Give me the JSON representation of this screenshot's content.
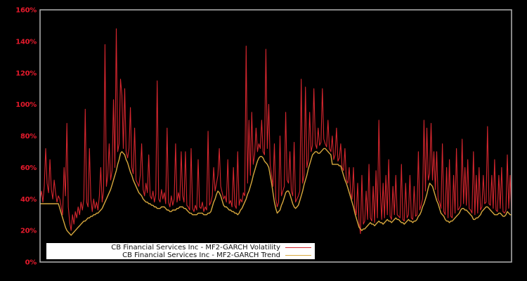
{
  "chart_data": {
    "type": "line",
    "title": "",
    "xlabel": "",
    "ylabel": "",
    "ylim": [
      0,
      160
    ],
    "grid": false,
    "background_color": "#000000",
    "plot_border_color": "#b4b4b4",
    "tick_label_color": "#e41a2c",
    "legend_position": "bottom-left",
    "y_ticks": [
      {
        "value": 0,
        "label": "0%"
      },
      {
        "value": 20,
        "label": "20%"
      },
      {
        "value": 40,
        "label": "40%"
      },
      {
        "value": 60,
        "label": "60%"
      },
      {
        "value": 80,
        "label": "80%"
      },
      {
        "value": 100,
        "label": "100%"
      },
      {
        "value": 120,
        "label": "120%"
      },
      {
        "value": 140,
        "label": "140%"
      },
      {
        "value": 160,
        "label": "160%"
      }
    ],
    "series": [
      {
        "id": "volatility",
        "name": "CB Financial Services Inc - MF2-GARCH Volatility",
        "color": "#d5262e",
        "values": [
          40,
          45,
          38,
          48,
          72,
          50,
          44,
          65,
          46,
          40,
          52,
          44,
          38,
          42,
          40,
          35,
          30,
          60,
          42,
          88,
          35,
          25,
          20,
          30,
          24,
          32,
          28,
          35,
          30,
          38,
          33,
          40,
          97,
          38,
          35,
          72,
          40,
          32,
          40,
          34,
          38,
          33,
          42,
          60,
          38,
          45,
          138,
          48,
          55,
          75,
          52,
          58,
          103,
          60,
          148,
          70,
          75,
          116,
          106,
          72,
          110,
          70,
          66,
          72,
          98,
          60,
          56,
          85,
          52,
          50,
          48,
          55,
          75,
          46,
          42,
          50,
          44,
          68,
          42,
          40,
          45,
          38,
          43,
          115,
          40,
          38,
          46,
          40,
          44,
          37,
          85,
          38,
          35,
          42,
          36,
          40,
          75,
          38,
          44,
          39,
          70,
          42,
          38,
          70,
          36,
          35,
          33,
          72,
          34,
          32,
          36,
          33,
          65,
          35,
          34,
          38,
          32,
          35,
          33,
          83,
          36,
          38,
          42,
          60,
          45,
          50,
          55,
          72,
          48,
          44,
          40,
          42,
          38,
          65,
          37,
          39,
          35,
          60,
          36,
          34,
          70,
          36,
          40,
          38,
          44,
          42,
          137,
          50,
          90,
          55,
          95,
          62,
          68,
          85,
          70,
          75,
          72,
          90,
          70,
          68,
          135,
          72,
          100,
          62,
          55,
          48,
          75,
          40,
          35,
          38,
          80,
          42,
          45,
          48,
          95,
          52,
          50,
          70,
          45,
          42,
          76,
          38,
          40,
          42,
          45,
          116,
          50,
          55,
          111,
          60,
          65,
          95,
          70,
          74,
          110,
          75,
          72,
          85,
          74,
          76,
          110,
          78,
          75,
          73,
          90,
          72,
          70,
          80,
          65,
          68,
          85,
          64,
          66,
          75,
          60,
          58,
          72,
          52,
          50,
          60,
          44,
          40,
          60,
          34,
          30,
          50,
          25,
          18,
          55,
          24,
          26,
          45,
          27,
          62,
          28,
          26,
          48,
          25,
          58,
          28,
          90,
          45,
          27,
          50,
          28,
          55,
          30,
          65,
          29,
          27,
          48,
          30,
          55,
          30,
          29,
          28,
          62,
          27,
          26,
          50,
          28,
          30,
          55,
          28,
          27,
          48,
          29,
          30,
          70,
          33,
          36,
          40,
          90,
          45,
          85,
          52,
          56,
          88,
          52,
          70,
          46,
          70,
          40,
          38,
          34,
          75,
          32,
          30,
          60,
          28,
          65,
          29,
          28,
          55,
          31,
          72,
          33,
          34,
          36,
          78,
          37,
          60,
          36,
          65,
          34,
          33,
          31,
          70,
          30,
          55,
          31,
          60,
          33,
          35,
          55,
          37,
          38,
          86,
          37,
          36,
          55,
          34,
          65,
          33,
          32,
          55,
          34,
          60,
          32,
          31,
          33,
          68,
          34,
          55,
          32
        ]
      },
      {
        "id": "trend",
        "name": "CB Financial Services Inc - MF2-GARCH Trend",
        "color": "#d8a83d",
        "values": [
          37,
          37,
          37,
          37,
          37,
          37,
          37,
          37,
          37,
          37,
          37,
          37,
          37,
          37,
          34,
          31,
          28,
          25,
          22,
          20,
          19,
          18,
          17,
          18,
          19,
          20,
          21,
          22,
          23,
          24,
          25,
          26,
          26,
          27,
          28,
          28,
          29,
          29,
          30,
          30,
          31,
          31,
          32,
          33,
          34,
          36,
          38,
          40,
          42,
          44,
          46,
          49,
          52,
          55,
          58,
          62,
          65,
          69,
          70,
          69,
          68,
          65,
          63,
          60,
          57,
          55,
          52,
          50,
          48,
          46,
          44,
          43,
          42,
          40,
          39,
          38,
          38,
          37,
          37,
          36,
          36,
          35,
          35,
          34,
          34,
          34,
          35,
          35,
          35,
          34,
          33,
          33,
          32,
          32,
          33,
          33,
          33,
          34,
          34,
          35,
          35,
          35,
          34,
          34,
          33,
          32,
          31,
          31,
          30,
          30,
          30,
          30,
          31,
          31,
          31,
          31,
          30,
          30,
          30,
          31,
          31,
          32,
          35,
          38,
          40,
          43,
          45,
          44,
          42,
          39,
          36,
          35,
          35,
          34,
          33,
          33,
          32,
          32,
          31,
          31,
          30,
          31,
          33,
          34,
          36,
          38,
          40,
          43,
          45,
          48,
          51,
          55,
          58,
          61,
          64,
          66,
          67,
          67,
          66,
          64,
          63,
          62,
          60,
          55,
          50,
          44,
          38,
          34,
          31,
          32,
          33,
          36,
          38,
          41,
          44,
          45,
          45,
          43,
          40,
          37,
          35,
          34,
          35,
          36,
          39,
          42,
          45,
          49,
          52,
          55,
          59,
          62,
          65,
          68,
          69,
          70,
          70,
          69,
          69,
          70,
          71,
          72,
          72,
          71,
          70,
          69,
          68,
          62,
          62,
          62,
          62,
          62,
          61,
          61,
          58,
          55,
          52,
          50,
          47,
          44,
          41,
          38,
          35,
          31,
          28,
          25,
          22,
          21,
          20,
          21,
          21,
          22,
          23,
          24,
          25,
          24,
          24,
          23,
          24,
          25,
          26,
          25,
          25,
          24,
          25,
          26,
          27,
          26,
          26,
          25,
          26,
          27,
          28,
          27,
          27,
          26,
          25,
          25,
          24,
          25,
          26,
          27,
          26,
          26,
          25,
          26,
          26,
          27,
          29,
          30,
          32,
          35,
          37,
          40,
          43,
          47,
          50,
          49,
          48,
          45,
          42,
          39,
          37,
          34,
          31,
          30,
          29,
          27,
          26,
          26,
          25,
          26,
          26,
          27,
          28,
          29,
          30,
          31,
          33,
          34,
          34,
          33,
          33,
          32,
          31,
          30,
          29,
          27,
          27,
          28,
          28,
          29,
          30,
          32,
          33,
          34,
          35,
          35,
          34,
          33,
          32,
          31,
          30,
          30,
          30,
          31,
          31,
          30,
          29,
          29,
          30,
          32,
          31,
          30,
          30
        ]
      }
    ]
  },
  "legend": {
    "items": [
      {
        "label": "CB Financial Services Inc - MF2-GARCH Volatility",
        "color": "#d5262e"
      },
      {
        "label": "CB Financial Services Inc - MF2-GARCH Trend",
        "color": "#d8a83d"
      }
    ]
  }
}
